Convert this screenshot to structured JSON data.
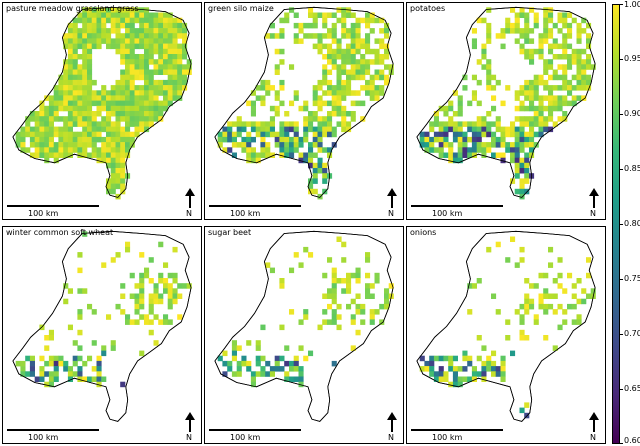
{
  "panels": [
    {
      "title": "pasture meadow grassland grass",
      "scale": "100 km",
      "north": "N",
      "coverage": "full"
    },
    {
      "title": "green silo maize",
      "scale": "100 km",
      "north": "N",
      "coverage": "mixed"
    },
    {
      "title": "potatoes",
      "scale": "100 km",
      "north": "N",
      "coverage": "mixed"
    },
    {
      "title": "winter common soft wheat",
      "scale": "100 km",
      "north": "N",
      "coverage": "sparse"
    },
    {
      "title": "sugar beet",
      "scale": "100 km",
      "north": "N",
      "coverage": "sparse"
    },
    {
      "title": "onions",
      "scale": "100 km",
      "north": "N",
      "coverage": "sparse"
    }
  ],
  "colorbar": {
    "ticks": [
      "1.00",
      "0.95",
      "0.90",
      "0.85",
      "0.80",
      "0.75",
      "0.70",
      "0.65",
      "0.60"
    ],
    "min": 0.6,
    "max": 1.0,
    "colormap": [
      "#440154",
      "#482878",
      "#3e4989",
      "#31688e",
      "#26828e",
      "#1f9e89",
      "#35b779",
      "#6ece58",
      "#b5de2b",
      "#fde725"
    ]
  }
}
